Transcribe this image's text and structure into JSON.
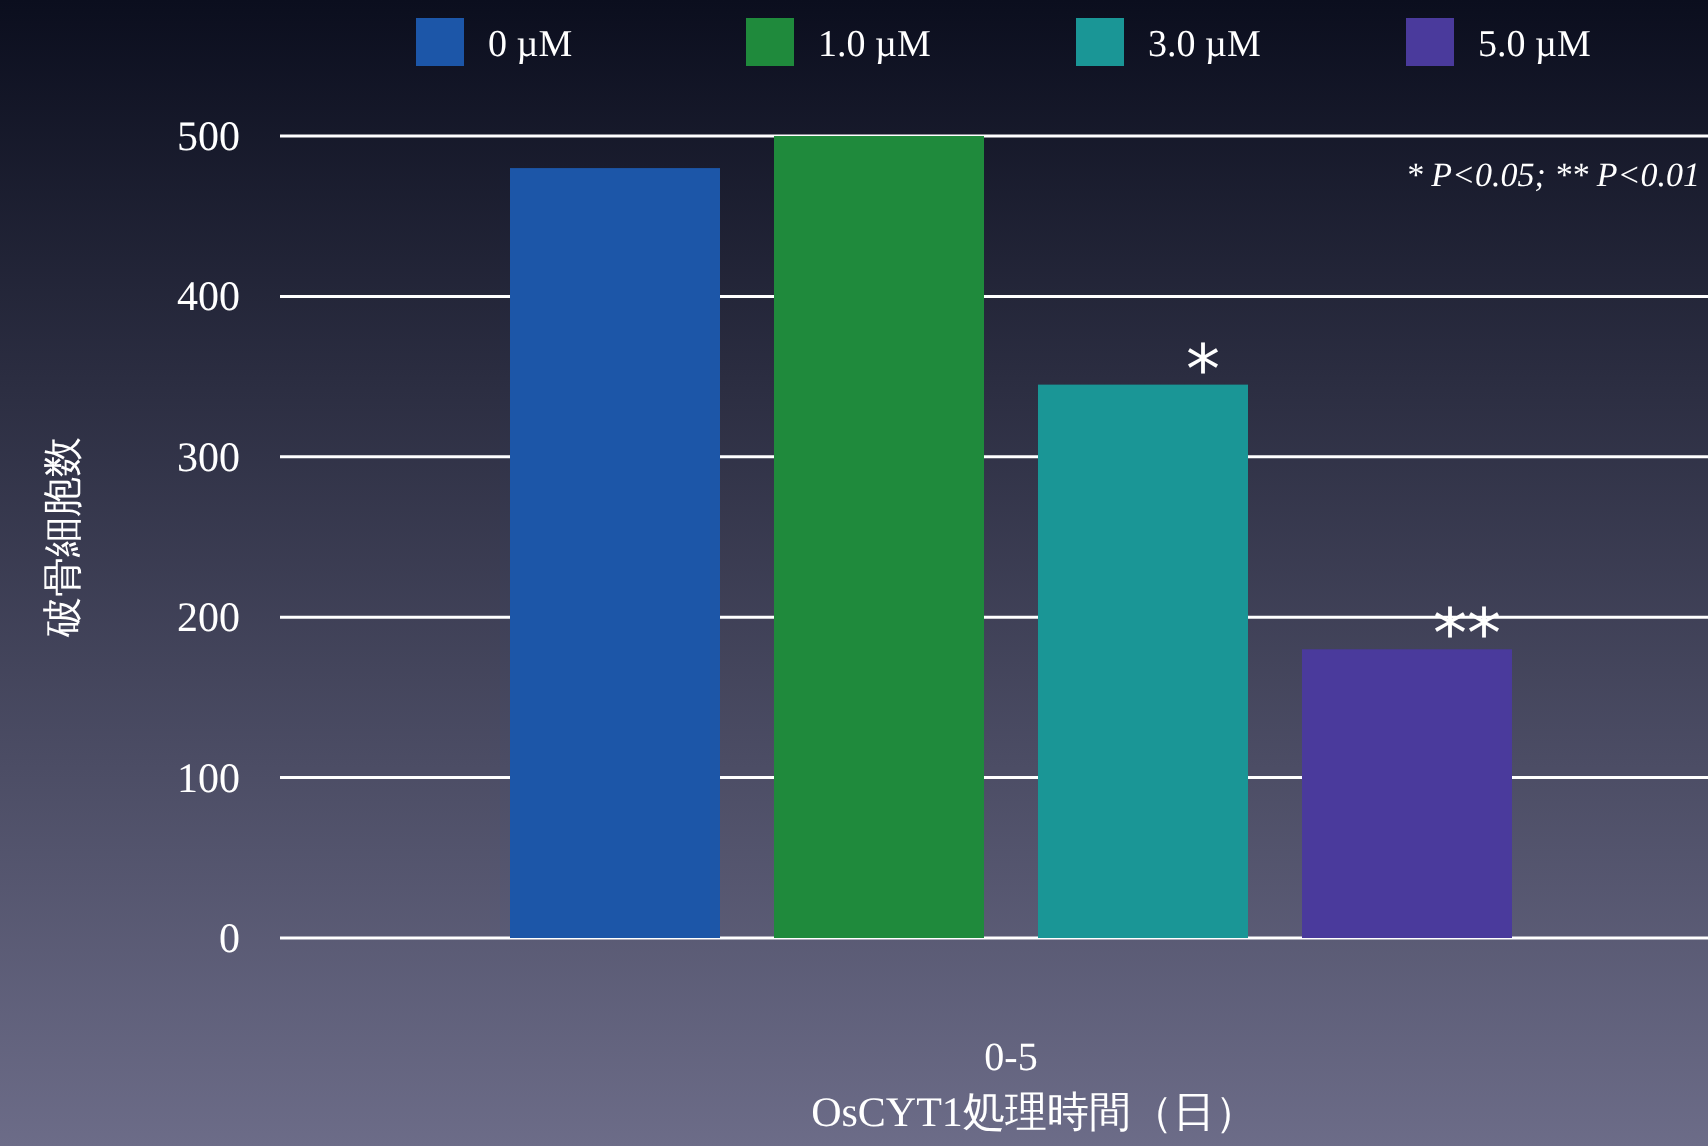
{
  "chart_data": {
    "type": "bar",
    "categories": [
      "0-5"
    ],
    "series": [
      {
        "name": "0 µM",
        "color": "#1c56a8",
        "values": [
          480
        ]
      },
      {
        "name": "1.0 µM",
        "color": "#1f8a3c",
        "values": [
          500
        ]
      },
      {
        "name": "3.0 µM",
        "color": "#1a9696",
        "values": [
          345
        ]
      },
      {
        "name": "5.0 µM",
        "color": "#4a3a9c",
        "values": [
          180
        ]
      }
    ],
    "ylim": [
      0,
      500
    ],
    "yticks": [
      0,
      100,
      200,
      300,
      400,
      500
    ],
    "ylabel": "破骨細胞数",
    "xlabel": "OsCYT1処理時間（日）",
    "annotations": [
      "* P<0.05; ** P<0.01",
      "*",
      "**"
    ],
    "grid": "y",
    "legend": "top"
  }
}
